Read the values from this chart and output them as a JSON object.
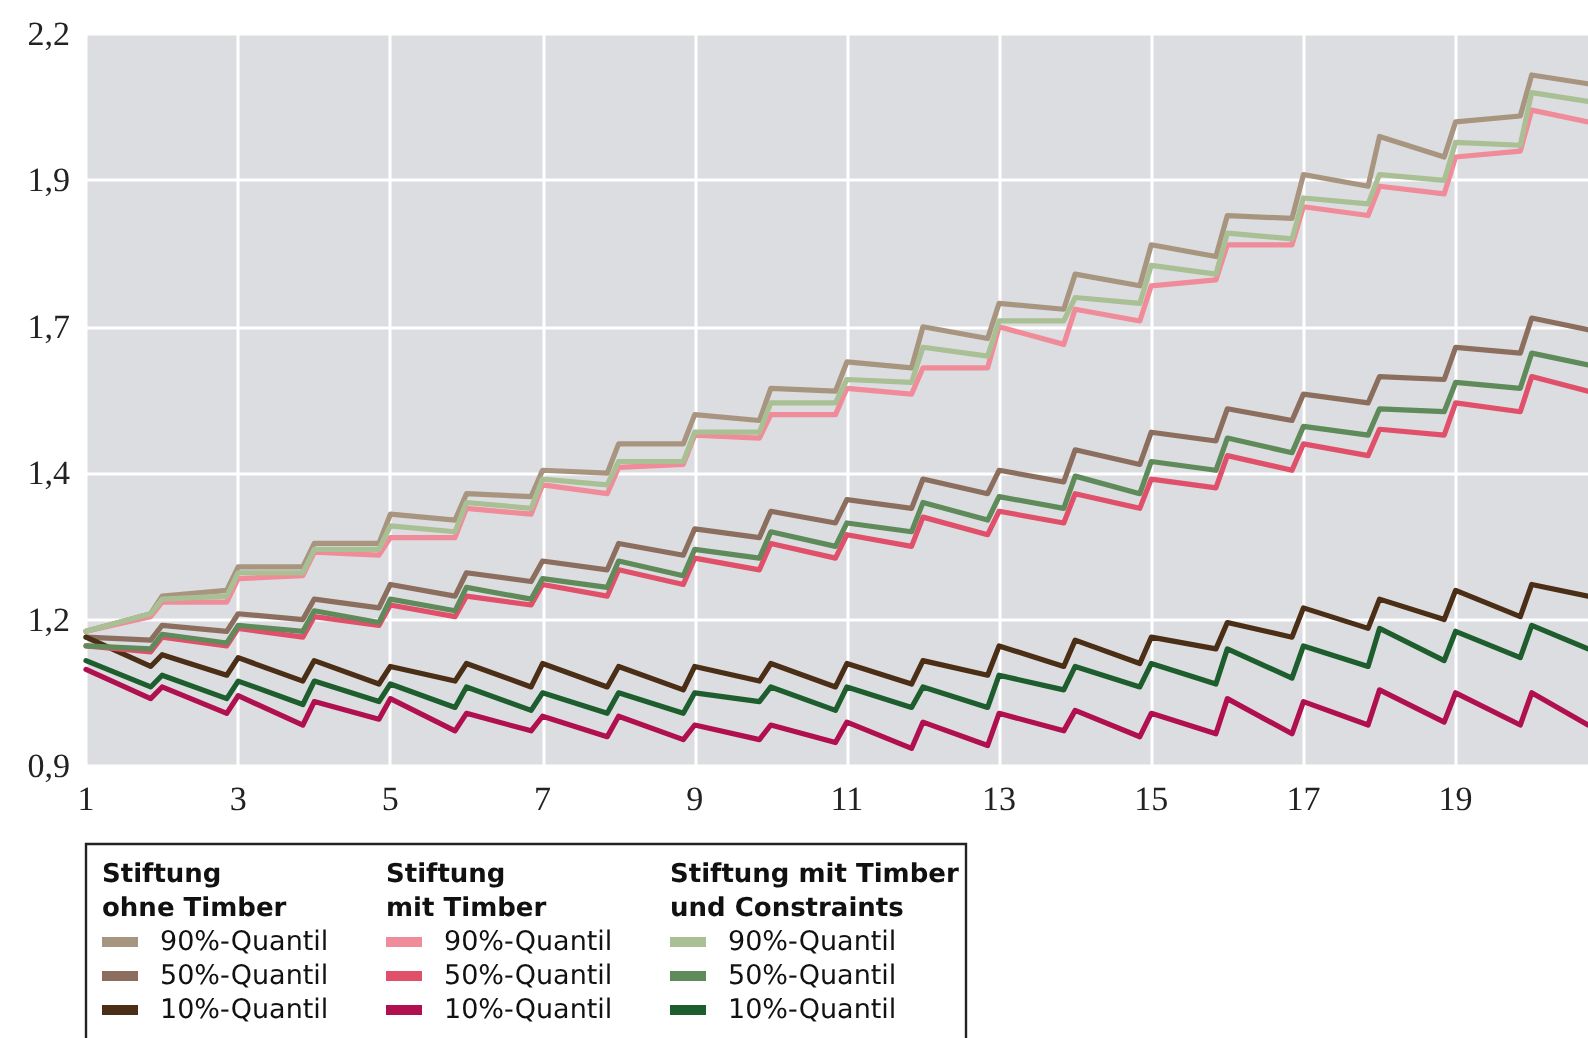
{
  "chart_data": {
    "type": "line",
    "x": [
      1,
      1.85,
      2,
      2.85,
      3,
      3.85,
      4,
      4.85,
      5,
      5.85,
      6,
      6.85,
      7,
      7.85,
      8,
      8.85,
      9,
      9.85,
      10,
      10.85,
      11,
      11.85,
      12,
      12.85,
      13,
      13.85,
      14,
      14.85,
      15,
      15.85,
      16,
      16.85,
      17,
      17.85,
      18,
      18.85,
      19,
      19.85,
      20,
      20.74
    ],
    "xlim": [
      1,
      20.74
    ],
    "xticks": [
      1,
      3,
      5,
      7,
      9,
      11,
      13,
      15,
      17,
      19
    ],
    "ylim": [
      0.9,
      2.15
    ],
    "yticks": [
      {
        "value": 0.9,
        "label": "0,9"
      },
      {
        "value": 1.15,
        "label": "1,2"
      },
      {
        "value": 1.4,
        "label": "1,4"
      },
      {
        "value": 1.65,
        "label": "1,7"
      },
      {
        "value": 1.9,
        "label": "1,9"
      },
      {
        "value": 2.15,
        "label": "2,2"
      }
    ],
    "grid": true,
    "marker": "none",
    "legend": "bottom left",
    "legend_title": [
      "Stiftung\nohne Timber",
      "Stiftung\nmit Timber",
      "Stiftung mit Timber\nund Constraints"
    ],
    "series": [
      {
        "name": "90%-Quantil",
        "color": "#a89580",
        "values": [
          1.13,
          1.16,
          1.19,
          1.2,
          1.24,
          1.24,
          1.28,
          1.28,
          1.33,
          1.32,
          1.365,
          1.36,
          1.405,
          1.4,
          1.45,
          1.45,
          1.5,
          1.49,
          1.545,
          1.54,
          1.59,
          1.58,
          1.65,
          1.63,
          1.69,
          1.68,
          1.74,
          1.72,
          1.79,
          1.77,
          1.84,
          1.835,
          1.91,
          1.89,
          1.975,
          1.94,
          2.0,
          2.01,
          2.08,
          2.065
        ]
      },
      {
        "name": "50%-Quantil",
        "color": "#8c6e5e",
        "values": [
          1.12,
          1.115,
          1.14,
          1.13,
          1.16,
          1.15,
          1.185,
          1.17,
          1.21,
          1.19,
          1.23,
          1.215,
          1.25,
          1.235,
          1.28,
          1.26,
          1.305,
          1.29,
          1.335,
          1.315,
          1.355,
          1.34,
          1.39,
          1.365,
          1.405,
          1.385,
          1.44,
          1.415,
          1.47,
          1.455,
          1.51,
          1.49,
          1.535,
          1.52,
          1.565,
          1.56,
          1.615,
          1.605,
          1.665,
          1.645
        ]
      },
      {
        "name": "10%-Quantil",
        "color": "#4a2e15",
        "values": [
          1.12,
          1.07,
          1.09,
          1.055,
          1.085,
          1.045,
          1.08,
          1.04,
          1.07,
          1.045,
          1.075,
          1.035,
          1.075,
          1.035,
          1.07,
          1.03,
          1.07,
          1.045,
          1.075,
          1.035,
          1.075,
          1.04,
          1.08,
          1.055,
          1.105,
          1.07,
          1.115,
          1.075,
          1.12,
          1.1,
          1.145,
          1.12,
          1.17,
          1.135,
          1.185,
          1.15,
          1.2,
          1.155,
          1.21,
          1.19
        ]
      },
      {
        "name": "90%-Quantil",
        "color": "#f08c9a",
        "values": [
          1.13,
          1.155,
          1.18,
          1.18,
          1.22,
          1.225,
          1.265,
          1.26,
          1.29,
          1.29,
          1.34,
          1.33,
          1.38,
          1.365,
          1.41,
          1.415,
          1.465,
          1.46,
          1.5,
          1.5,
          1.545,
          1.535,
          1.58,
          1.58,
          1.65,
          1.62,
          1.68,
          1.66,
          1.72,
          1.73,
          1.79,
          1.79,
          1.855,
          1.84,
          1.89,
          1.877,
          1.94,
          1.95,
          2.02,
          2.0
        ]
      },
      {
        "name": "50%-Quantil",
        "color": "#e0506a",
        "values": [
          1.105,
          1.095,
          1.12,
          1.105,
          1.135,
          1.12,
          1.155,
          1.14,
          1.175,
          1.155,
          1.19,
          1.175,
          1.21,
          1.19,
          1.235,
          1.21,
          1.255,
          1.235,
          1.28,
          1.255,
          1.295,
          1.275,
          1.325,
          1.295,
          1.335,
          1.315,
          1.365,
          1.34,
          1.39,
          1.375,
          1.43,
          1.405,
          1.45,
          1.43,
          1.475,
          1.465,
          1.52,
          1.505,
          1.565,
          1.54
        ]
      },
      {
        "name": "10%-Quantil",
        "color": "#b0104f",
        "values": [
          1.065,
          1.015,
          1.035,
          0.99,
          1.02,
          0.97,
          1.01,
          0.98,
          1.015,
          0.96,
          0.99,
          0.96,
          0.985,
          0.95,
          0.985,
          0.945,
          0.97,
          0.945,
          0.97,
          0.94,
          0.975,
          0.93,
          0.975,
          0.935,
          0.99,
          0.96,
          0.995,
          0.95,
          0.99,
          0.955,
          1.015,
          0.955,
          1.01,
          0.97,
          1.03,
          0.975,
          1.025,
          0.97,
          1.025,
          0.97
        ]
      },
      {
        "name": "90%-Quantil",
        "color": "#a9bf94",
        "values": [
          1.13,
          1.16,
          1.185,
          1.19,
          1.23,
          1.23,
          1.27,
          1.27,
          1.31,
          1.3,
          1.35,
          1.34,
          1.39,
          1.38,
          1.42,
          1.42,
          1.47,
          1.47,
          1.52,
          1.52,
          1.56,
          1.555,
          1.615,
          1.6,
          1.66,
          1.66,
          1.7,
          1.69,
          1.755,
          1.74,
          1.81,
          1.8,
          1.87,
          1.86,
          1.91,
          1.9,
          1.965,
          1.96,
          2.05,
          2.035
        ]
      },
      {
        "name": "50%-Quantil",
        "color": "#5f8a5a",
        "values": [
          1.105,
          1.1,
          1.125,
          1.11,
          1.14,
          1.13,
          1.165,
          1.145,
          1.185,
          1.165,
          1.205,
          1.185,
          1.22,
          1.205,
          1.25,
          1.225,
          1.27,
          1.255,
          1.3,
          1.275,
          1.315,
          1.3,
          1.35,
          1.32,
          1.36,
          1.34,
          1.395,
          1.365,
          1.42,
          1.405,
          1.46,
          1.435,
          1.48,
          1.465,
          1.51,
          1.505,
          1.555,
          1.545,
          1.605,
          1.585
        ]
      },
      {
        "name": "10%-Quantil",
        "color": "#1e5e2e",
        "values": [
          1.08,
          1.035,
          1.055,
          1.015,
          1.045,
          1.005,
          1.045,
          1.01,
          1.04,
          1.0,
          1.035,
          0.995,
          1.025,
          0.99,
          1.025,
          0.99,
          1.025,
          1.01,
          1.035,
          0.995,
          1.035,
          1.0,
          1.035,
          1.0,
          1.055,
          1.03,
          1.07,
          1.035,
          1.075,
          1.04,
          1.1,
          1.05,
          1.105,
          1.07,
          1.135,
          1.08,
          1.13,
          1.085,
          1.14,
          1.1
        ]
      }
    ]
  }
}
